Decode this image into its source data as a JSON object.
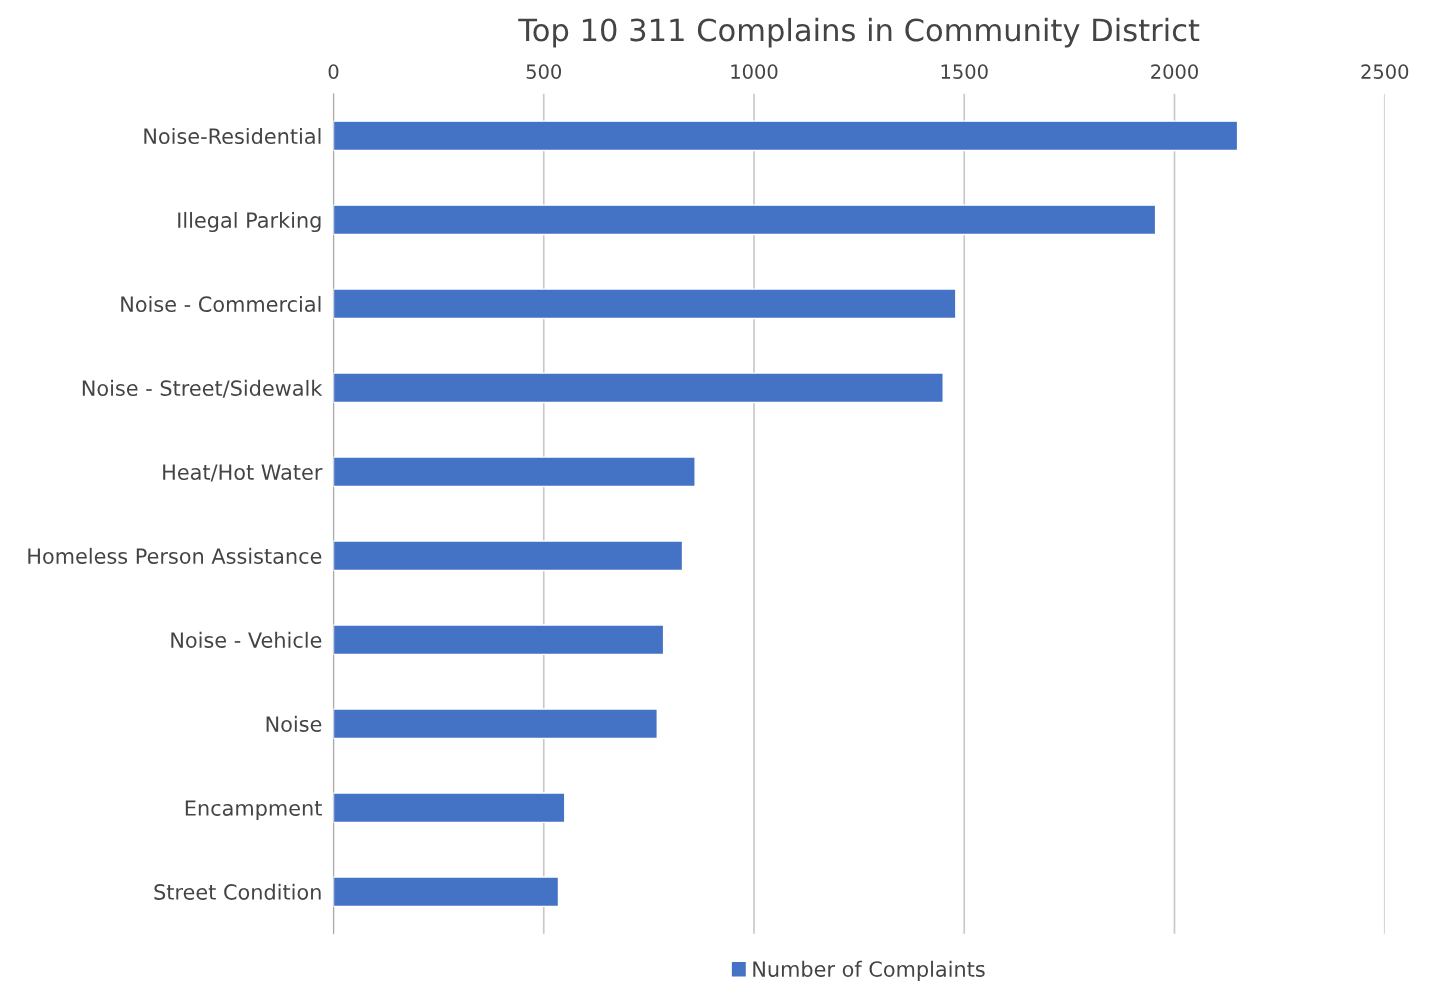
{
  "chart_data": {
    "type": "bar",
    "orientation": "horizontal",
    "title": "Top 10 311 Complains in Community District",
    "categories": [
      "Noise-Residential",
      "Illegal Parking",
      "Noise - Commercial",
      "Noise - Street/Sidewalk",
      "Heat/Hot Water",
      "Homeless Person Assistance",
      "Noise - Vehicle",
      "Noise",
      "Encampment",
      "Street Condition"
    ],
    "series": [
      {
        "name": "Number of Complaints",
        "color": "#4472c4",
        "values": [
          2150,
          1955,
          1480,
          1450,
          860,
          830,
          785,
          770,
          550,
          535
        ]
      }
    ],
    "xlim": [
      0,
      2500
    ],
    "xticks": [
      0,
      500,
      1000,
      1500,
      2000,
      2500
    ],
    "grid": "x",
    "legend": "bottom"
  }
}
